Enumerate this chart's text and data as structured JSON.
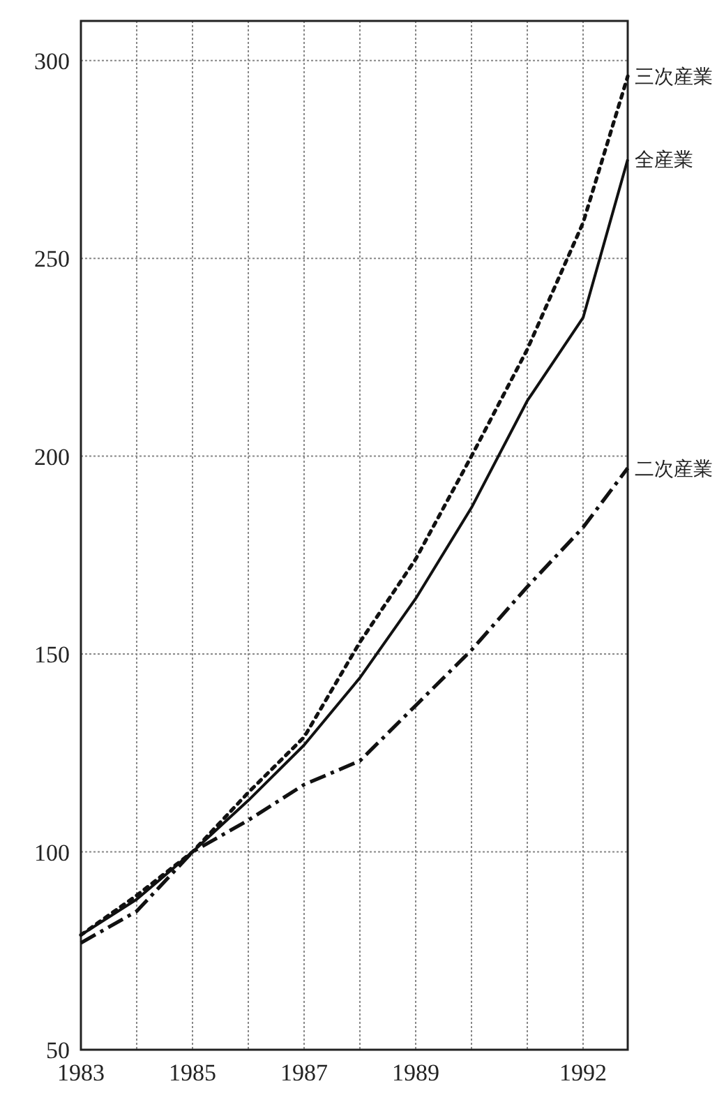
{
  "chart_data": {
    "type": "line",
    "x": [
      1983,
      1984,
      1985,
      1986,
      1987,
      1988,
      1989,
      1990,
      1991,
      1992,
      1992.8
    ],
    "series": [
      {
        "name": "三次産業",
        "color": "#111111",
        "line_style": "dotted",
        "values": [
          79,
          89,
          100,
          115,
          129,
          153,
          174,
          200,
          227,
          259,
          296
        ]
      },
      {
        "name": "全産業",
        "color": "#111111",
        "line_style": "solid",
        "values": [
          79,
          88,
          100,
          113,
          127,
          144,
          164,
          187,
          214,
          235,
          275
        ]
      },
      {
        "name": "二次産業",
        "color": "#111111",
        "line_style": "dashdot",
        "values": [
          77,
          85,
          100,
          108,
          117,
          123,
          137,
          151,
          167,
          182,
          197
        ]
      }
    ],
    "xlim": [
      1983,
      1992.8
    ],
    "ylim": [
      50,
      310
    ],
    "xticks": [
      1983,
      {
        "value": 1984,
        "label": null
      },
      1985,
      {
        "value": 1986,
        "label": null
      },
      1987,
      {
        "value": 1988,
        "label": null
      },
      1989,
      {
        "value": 1990,
        "label": null
      },
      {
        "value": 1991,
        "label": null
      },
      1992
    ],
    "yticks": [
      50,
      100,
      150,
      200,
      250,
      300
    ],
    "grid": true,
    "marker": "none"
  }
}
